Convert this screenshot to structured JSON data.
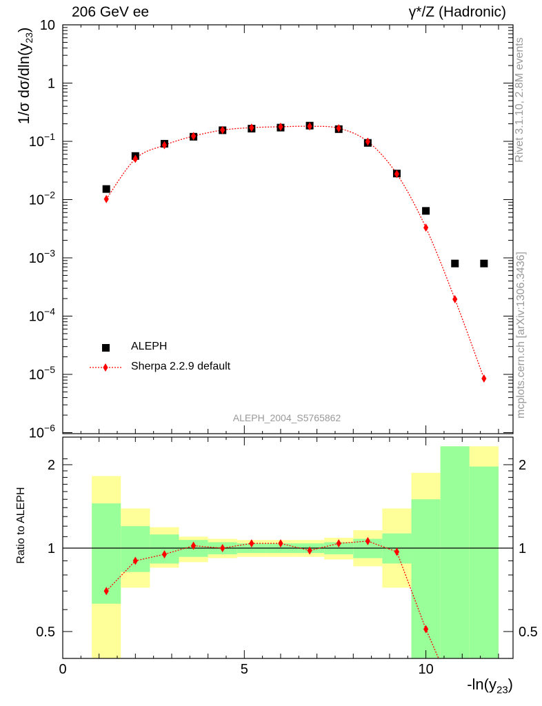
{
  "header": {
    "left": "206 GeV ee",
    "right": "γ*/Z (Hadronic)"
  },
  "side_labels": {
    "rivet": "Rivet 3.1.10,  2.8M events",
    "mcplots": "mcplots.cern.ch [arXiv:1306.3436]"
  },
  "analysis_label": "ALEPH_2004_S5765862",
  "axes": {
    "x_label": "-ln(y",
    "x_label_sub": "23",
    "y_label": "1/σ  dσ/dln(y",
    "y_label_sub": "23",
    "ratio_y_label": "Ratio to ALEPH"
  },
  "legend": {
    "data_label": "ALEPH",
    "mc_label": "Sherpa 2.2.9 default"
  },
  "colors": {
    "data": "#000000",
    "mc": "#ff0000",
    "band_inner": "#99ff99",
    "band_outer": "#ffff99",
    "side_text": "#999999"
  },
  "chart_data": [
    {
      "type": "scatter",
      "panel": "main",
      "xlim": [
        0,
        12.4
      ],
      "ylim": [
        7e-07,
        12
      ],
      "log_y": true,
      "y_ticks": [
        "10",
        "1",
        "10^-1",
        "10^-2",
        "10^-3",
        "10^-4",
        "10^-5",
        "10^-6"
      ],
      "x_ticks": [
        "0",
        "5",
        "10"
      ],
      "series": [
        {
          "name": "ALEPH",
          "marker": "square",
          "x": [
            1.2,
            2.0,
            2.8,
            3.6,
            4.4,
            5.2,
            6.0,
            6.8,
            7.6,
            8.4,
            9.2,
            10.0,
            10.8,
            11.6
          ],
          "y": [
            0.0152,
            0.056,
            0.091,
            0.12,
            0.155,
            0.165,
            0.172,
            0.186,
            0.162,
            0.094,
            0.028,
            0.0064,
            0.0008,
            0.0008
          ]
        },
        {
          "name": "Sherpa 2.2.9 default",
          "marker": "diamond",
          "x": [
            1.2,
            2.0,
            2.8,
            3.6,
            4.4,
            5.2,
            6.0,
            6.8,
            7.6,
            8.4,
            9.2,
            10.0,
            10.8,
            11.6
          ],
          "y": [
            0.0102,
            0.05,
            0.086,
            0.123,
            0.156,
            0.172,
            0.178,
            0.181,
            0.168,
            0.099,
            0.0275,
            0.0033,
            0.000195,
            8.5e-06
          ]
        }
      ]
    },
    {
      "type": "scatter",
      "panel": "ratio",
      "xlim": [
        0,
        12.4
      ],
      "ylim": [
        0.33,
        2.33
      ],
      "log_y": true,
      "y_ticks": [
        "0.5",
        "1",
        "2"
      ],
      "bins": [
        0.8,
        1.6,
        2.4,
        3.2,
        4.0,
        4.8,
        5.6,
        6.4,
        7.2,
        8.0,
        8.8,
        9.6,
        10.4,
        11.2,
        12.0
      ],
      "band_inner": {
        "low": [
          0.63,
          0.82,
          0.88,
          0.93,
          0.95,
          0.96,
          0.96,
          0.96,
          0.95,
          0.92,
          0.88,
          0.33,
          0.33,
          0.33
        ],
        "high": [
          1.45,
          1.2,
          1.12,
          1.07,
          1.05,
          1.04,
          1.04,
          1.04,
          1.05,
          1.08,
          1.13,
          1.5,
          2.33,
          1.97
        ]
      },
      "band_outer": {
        "low": [
          0.33,
          0.72,
          0.85,
          0.89,
          0.92,
          0.93,
          0.93,
          0.93,
          0.91,
          0.86,
          0.72,
          0.33,
          0.33,
          0.33
        ],
        "high": [
          1.82,
          1.39,
          1.19,
          1.1,
          1.08,
          1.07,
          1.07,
          1.07,
          1.09,
          1.16,
          1.39,
          1.87,
          2.33,
          2.33
        ]
      },
      "ratio_points": {
        "name": "Sherpa 2.2.9 default",
        "x": [
          1.2,
          2.0,
          2.8,
          3.6,
          4.4,
          5.2,
          6.0,
          6.8,
          7.6,
          8.4,
          9.2,
          10.0
        ],
        "y": [
          0.7,
          0.9,
          0.95,
          1.02,
          1.0,
          1.04,
          1.04,
          0.98,
          1.04,
          1.06,
          0.97,
          0.51
        ]
      }
    }
  ]
}
